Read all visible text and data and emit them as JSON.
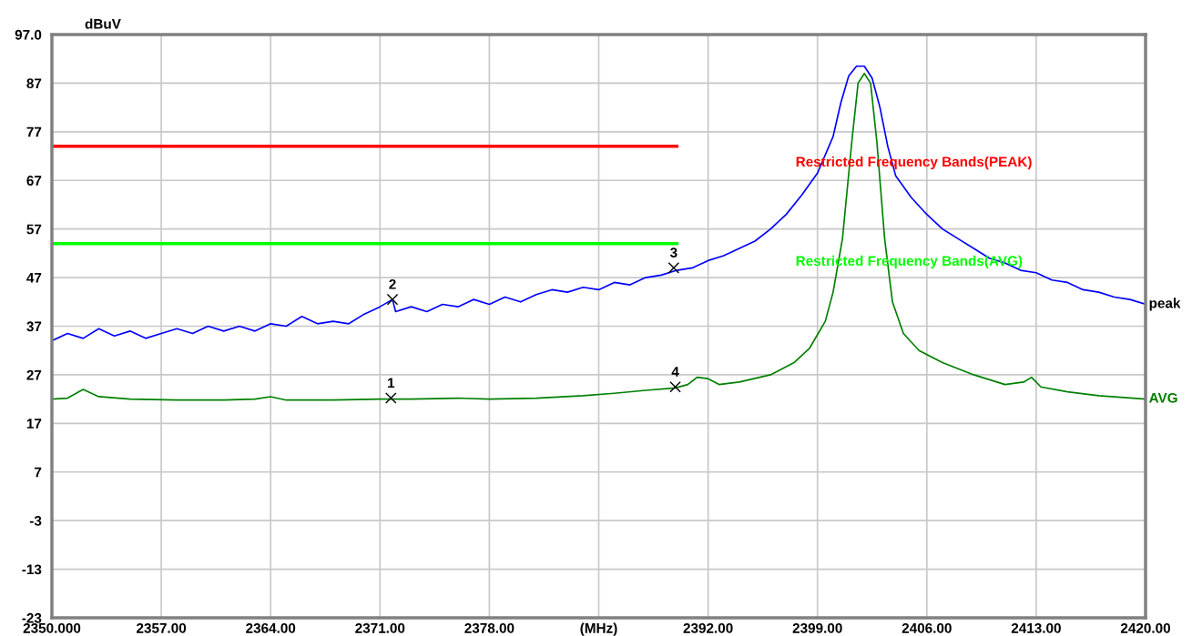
{
  "chart_data": {
    "type": "line",
    "ylabel": "dBuV",
    "xlim": [
      2350,
      2420
    ],
    "xticks": [
      {
        "value": 2350,
        "label": "2350.000"
      },
      {
        "value": 2357,
        "label": "2357.00"
      },
      {
        "value": 2364,
        "label": "2364.00"
      },
      {
        "value": 2371,
        "label": "2371.00"
      },
      {
        "value": 2378,
        "label": "2378.00"
      },
      {
        "value": 2385,
        "label": "(MHz)"
      },
      {
        "value": 2392,
        "label": "2392.00"
      },
      {
        "value": 2399,
        "label": "2399.00"
      },
      {
        "value": 2406,
        "label": "2406.00"
      },
      {
        "value": 2413,
        "label": "2413.00"
      },
      {
        "value": 2420,
        "label": "2420.00"
      }
    ],
    "ylim": [
      -23,
      97
    ],
    "yticks": [
      -23,
      -13,
      -3,
      7,
      17,
      27,
      37,
      47,
      57,
      67,
      77,
      87,
      {
        "value": 97,
        "label": "97.0"
      }
    ],
    "grid": true,
    "legend": false,
    "marker": "none",
    "line_style": "solid",
    "series": [
      {
        "name": "peak",
        "color": "#0000ff",
        "x": [
          2350,
          2351,
          2352,
          2353,
          2354,
          2355,
          2356,
          2357,
          2358,
          2359,
          2360,
          2361,
          2362,
          2363,
          2364,
          2365,
          2366,
          2367,
          2368,
          2369,
          2370,
          2371,
          2371.8,
          2372,
          2373,
          2374,
          2375,
          2376,
          2377,
          2378,
          2379,
          2380,
          2381,
          2382,
          2383,
          2384,
          2385,
          2386,
          2387,
          2388,
          2389,
          2390,
          2391,
          2392,
          2393,
          2394,
          2395,
          2396,
          2397,
          2398,
          2399,
          2400,
          2400.5,
          2401,
          2401.5,
          2402,
          2402.5,
          2403,
          2403.5,
          2404,
          2405,
          2406,
          2407,
          2408,
          2409,
          2410,
          2411,
          2412,
          2413,
          2414,
          2415,
          2416,
          2417,
          2418,
          2419,
          2420
        ],
        "values": [
          34.0,
          35.5,
          34.5,
          36.5,
          35.0,
          36.0,
          34.5,
          35.5,
          36.5,
          35.5,
          37.0,
          36.0,
          37.0,
          36.0,
          37.5,
          37.0,
          39.0,
          37.5,
          38.0,
          37.5,
          39.5,
          41.0,
          42.5,
          40.0,
          41.0,
          40.0,
          41.5,
          41.0,
          42.5,
          41.5,
          43.0,
          42.0,
          43.5,
          44.5,
          44.0,
          45.0,
          44.5,
          46.0,
          45.5,
          47.0,
          47.5,
          48.5,
          49.0,
          50.5,
          51.5,
          53.0,
          54.5,
          57.0,
          60.0,
          64.0,
          68.5,
          76.0,
          83.0,
          88.5,
          90.5,
          90.5,
          88.0,
          82.0,
          74.0,
          68.0,
          63.5,
          60.0,
          57.0,
          55.0,
          53.0,
          51.0,
          50.0,
          48.5,
          48.0,
          46.5,
          46.0,
          44.5,
          44.0,
          43.0,
          42.5,
          41.5
        ]
      },
      {
        "name": "AVG",
        "color": "#008000",
        "x": [
          2350,
          2351,
          2352,
          2353,
          2355,
          2358,
          2361,
          2363,
          2364,
          2365,
          2368,
          2371,
          2373,
          2376,
          2378,
          2381,
          2384,
          2386,
          2388,
          2389.9,
          2390.7,
          2391.3,
          2392,
          2392.7,
          2394,
          2396,
          2397.5,
          2398.5,
          2399.5,
          2400,
          2400.6,
          2401.2,
          2401.6,
          2402,
          2402.4,
          2402.8,
          2403.3,
          2403.8,
          2404.5,
          2405.5,
          2407,
          2409,
          2411,
          2412.2,
          2412.7,
          2413.3,
          2415,
          2417,
          2420
        ],
        "values": [
          22.0,
          22.2,
          24.0,
          22.5,
          22.0,
          21.8,
          21.8,
          22.0,
          22.5,
          21.8,
          21.8,
          22.0,
          22.0,
          22.2,
          22.0,
          22.2,
          22.7,
          23.2,
          23.8,
          24.3,
          25.0,
          26.5,
          26.2,
          25.0,
          25.5,
          27.0,
          29.5,
          32.5,
          38.0,
          44.0,
          55.0,
          75.0,
          87.0,
          89.0,
          87.0,
          75.0,
          55.0,
          42.0,
          35.5,
          32.0,
          29.5,
          27.0,
          25.0,
          25.5,
          26.5,
          24.5,
          23.5,
          22.7,
          22.0
        ]
      },
      {
        "name": "Restricted Frequency Bands(PEAK)",
        "color": "#ff0000",
        "x": [
          2350,
          2390
        ],
        "values": [
          74,
          74
        ]
      },
      {
        "name": "Restricted Frequency Bands(AVG)",
        "color": "#00ff00",
        "x": [
          2350,
          2390
        ],
        "values": [
          54,
          54
        ]
      }
    ],
    "annotations": [
      {
        "text": "1",
        "x": 2371.7,
        "y": 22.2
      },
      {
        "text": "2",
        "x": 2371.8,
        "y": 42.5
      },
      {
        "text": "3",
        "x": 2389.8,
        "y": 49
      },
      {
        "text": "4",
        "x": 2389.9,
        "y": 24.5
      }
    ]
  }
}
